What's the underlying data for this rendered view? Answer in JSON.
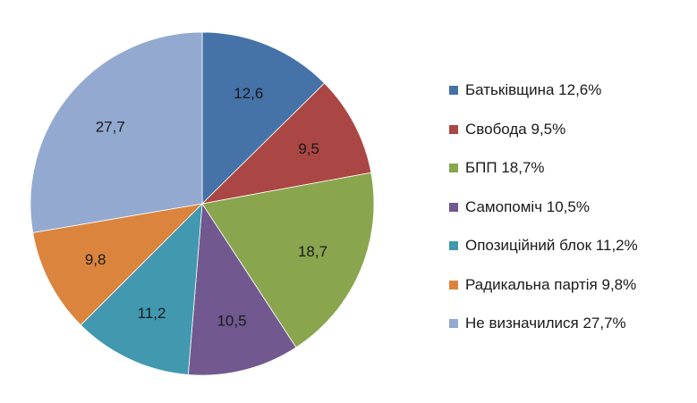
{
  "chart_data": {
    "type": "pie",
    "title": "",
    "start_angle_deg": 0,
    "direction": "clockwise",
    "categories": [
      "Батьківщина",
      "Свобода",
      "БПП",
      "Самопоміч",
      "Опозиційний блок",
      "Радикальна партія",
      "Не визначилися"
    ],
    "values": [
      12.6,
      9.5,
      18.7,
      10.5,
      11.2,
      9.8,
      27.7
    ],
    "data_labels": [
      "12,6",
      "9,5",
      "18,7",
      "10,5",
      "11,2",
      "9,8",
      "27,7"
    ],
    "colors": [
      "#4572a7",
      "#aa4643",
      "#89a54e",
      "#71588f",
      "#4198af",
      "#db843d",
      "#93a9cf"
    ],
    "legend_position": "right",
    "legend": [
      "Батьківщина 12,6%",
      "Свобода 9,5%",
      "БПП 18,7%",
      "Самопоміч 10,5%",
      "Опозиційний блок 11,2%",
      "Радикальна партія 9,8%",
      "Не визначилися 27,7%"
    ]
  }
}
